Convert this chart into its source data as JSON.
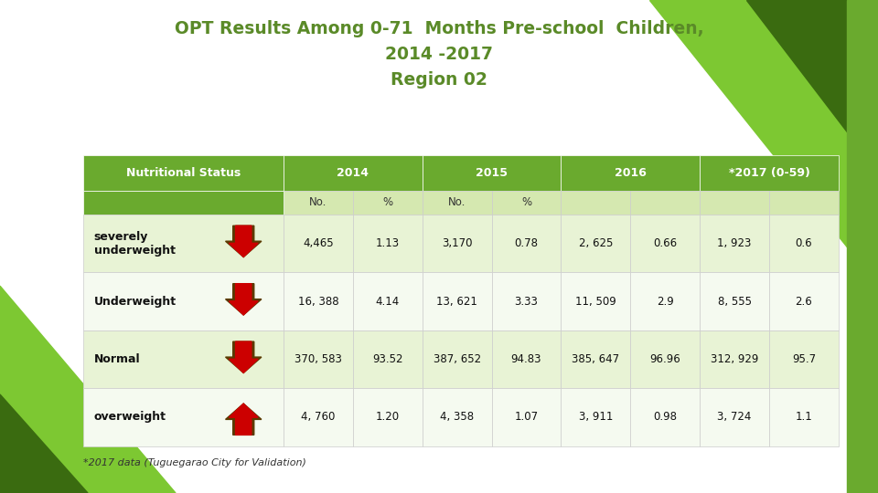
{
  "title_line1": "OPT Results Among 0-71  Months Pre-school  Children,",
  "title_line2": "2014 -2017",
  "title_line3": "Region 02",
  "title_color": "#5a8a28",
  "background_color": "#ffffff",
  "footer": "*2017 data (Tuguegarao City for Validation)",
  "header_bg": "#6aaa2e",
  "header_text_color": "#ffffff",
  "subheader_bg": "#d5e8b0",
  "row_bg_light": "#e8f3d5",
  "row_bg_white": "#f5faf0",
  "col_header": "Nutritional Status",
  "year_headers": [
    "2014",
    "2015",
    "2016",
    "*2017 (0-59)"
  ],
  "rows": [
    {
      "label": "severely\nunderweight",
      "arrow": "down",
      "values": [
        "4,465",
        "1.13",
        "3,170",
        "0.78",
        "2, 625",
        "0.66",
        "1, 923",
        "0.6"
      ]
    },
    {
      "label": "Underweight",
      "arrow": "down",
      "values": [
        "16, 388",
        "4.14",
        "13, 621",
        "3.33",
        "11, 509",
        "2.9",
        "8, 555",
        "2.6"
      ]
    },
    {
      "label": "Normal",
      "arrow": "down",
      "values": [
        "370, 583",
        "93.52",
        "387, 652",
        "94.83",
        "385, 647",
        "96.96",
        "312, 929",
        "95.7"
      ]
    },
    {
      "label": "overweight",
      "arrow": "up",
      "values": [
        "4, 760",
        "1.20",
        "4, 358",
        "1.07",
        "3, 911",
        "0.98",
        "3, 724",
        "1.1"
      ]
    }
  ],
  "arrow_color": "#cc0000",
  "arrow_outline_color": "#5a3a00",
  "green_light": "#7dc832",
  "green_mid": "#5a9a1a",
  "green_dark": "#3a6b10",
  "green_bar": "#6aaa2e"
}
